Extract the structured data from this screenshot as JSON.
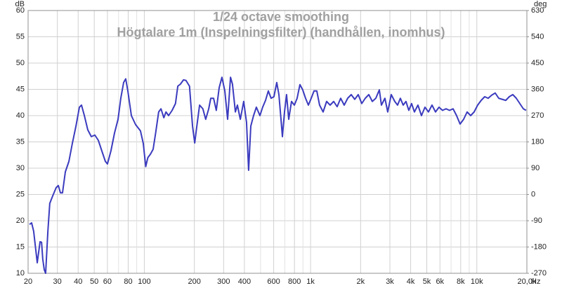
{
  "chart_data": {
    "type": "line",
    "title": "1/24 octave smoothing",
    "subtitle": "Högtalare 1m (Inspelningsfilter) (handhållen, inomhus)",
    "ylabel": "dB",
    "y2label": "deg",
    "xlabel": "Hz",
    "log_x": true,
    "grid": true,
    "xlim": [
      20,
      20000
    ],
    "xticks": [
      20,
      30,
      40,
      50,
      60,
      80,
      100,
      200,
      300,
      400,
      600,
      800,
      {
        "value": 1000,
        "label": "1k"
      },
      {
        "value": 2000,
        "label": "2k"
      },
      {
        "value": 3000,
        "label": "3k"
      },
      {
        "value": 4000,
        "label": "4k"
      },
      {
        "value": 5000,
        "label": "5k"
      },
      {
        "value": 6000,
        "label": "6k"
      },
      {
        "value": 8000,
        "label": "8k"
      },
      {
        "value": 10000,
        "label": "10k"
      },
      {
        "value": 20000,
        "label": "20,0k"
      }
    ],
    "xminorticks": [
      70,
      90,
      500,
      700,
      900,
      7000,
      9000
    ],
    "ylim": [
      10,
      60
    ],
    "yticks": [
      10,
      15,
      20,
      25,
      30,
      35,
      40,
      45,
      50,
      55,
      60
    ],
    "y2lim": [
      -270,
      630
    ],
    "y2ticks": [
      -270,
      -180,
      -90,
      0,
      90,
      180,
      270,
      360,
      450,
      540,
      630
    ],
    "x": [
      20.4,
      21.0,
      21.6,
      22.7,
      23.6,
      24.1,
      24.5,
      25.0,
      25.5,
      26.3,
      27.0,
      28.1,
      29.5,
      30.4,
      31.3,
      32.2,
      33.5,
      35.2,
      36.9,
      38.8,
      40.7,
      41.9,
      43.6,
      45.7,
      48.0,
      50.4,
      52.9,
      55.5,
      58.3,
      60.0,
      63.0,
      66.2,
      69.5,
      72.2,
      75.1,
      77.3,
      79.6,
      83.6,
      88.6,
      94.8,
      98.6,
      102,
      105,
      109,
      113,
      117,
      122,
      126,
      131,
      135,
      140,
      147,
      154,
      159,
      165,
      172,
      178,
      187,
      195,
      201,
      207,
      215,
      225,
      234,
      244,
      251,
      261,
      271,
      282,
      293,
      305,
      317,
      330,
      339,
      353,
      363,
      378,
      396,
      412,
      424,
      437,
      454,
      472,
      496,
      515,
      536,
      557,
      579,
      602,
      626,
      645,
      664,
      677,
      697,
      717,
      739,
      768,
      799,
      830,
      863,
      897,
      933,
      970,
      1009,
      1049,
      1090,
      1133,
      1190,
      1249,
      1311,
      1377,
      1445,
      1517,
      1593,
      1672,
      1756,
      1843,
      1935,
      2032,
      2133,
      2240,
      2352,
      2468,
      2592,
      2668,
      2800,
      2911,
      3057,
      3209,
      3337,
      3468,
      3606,
      3749,
      3897,
      4052,
      4214,
      4424,
      4645,
      4877,
      5118,
      5375,
      5643,
      5923,
      6218,
      6530,
      6855,
      7196,
      7555,
      7931,
      8328,
      8742,
      9177,
      9635,
      10117,
      10620,
      11149,
      11704,
      12287,
      12902,
      13544,
      14219,
      14929,
      15672,
      16455,
      17276,
      18135,
      19039,
      19784
    ],
    "series": [
      {
        "color": "#3b3bbf",
        "values": [
          19.3,
          19.6,
          18,
          12,
          16,
          15.9,
          12.7,
          10.7,
          10,
          18,
          23.3,
          24.7,
          26.3,
          26.7,
          25.3,
          25.3,
          29.3,
          31.3,
          34.7,
          38,
          41.6,
          42,
          40,
          37.3,
          36,
          36.3,
          35.3,
          33.3,
          31.3,
          30.8,
          33.3,
          36.7,
          39.3,
          43.3,
          46.3,
          47,
          44.7,
          40,
          38.3,
          37.1,
          34.7,
          30.3,
          32,
          32.7,
          33.6,
          36.7,
          40.7,
          41.3,
          39.6,
          40.7,
          40,
          41,
          42.3,
          45.6,
          46,
          46.8,
          46.7,
          45.6,
          38,
          34.8,
          38,
          42,
          41.3,
          39.3,
          41.3,
          43.3,
          43.3,
          41,
          45.3,
          47.3,
          44.7,
          39.3,
          47.3,
          46,
          40.7,
          42,
          39.3,
          42.7,
          38.7,
          29.6,
          38,
          40,
          41.6,
          40,
          41.6,
          42.9,
          44.7,
          43.3,
          43.6,
          46.3,
          44,
          39.3,
          36,
          40.7,
          44,
          39.3,
          42.7,
          42,
          43.3,
          45.9,
          44.9,
          43.3,
          42,
          43.3,
          44.7,
          44.7,
          42,
          40.7,
          42.7,
          42,
          42.7,
          41.7,
          43.3,
          42,
          43.3,
          44,
          43.1,
          44,
          42.3,
          43.3,
          44,
          42.7,
          43.3,
          44.9,
          42,
          43.3,
          40.7,
          44,
          42.7,
          42,
          43.3,
          42,
          42.7,
          41,
          42.3,
          40.7,
          42,
          40,
          41.6,
          40.7,
          42,
          40.7,
          41.6,
          41,
          41.3,
          41,
          41.3,
          40,
          38.4,
          39.3,
          40.7,
          40,
          40.7,
          42,
          42.9,
          43.6,
          43.3,
          43.9,
          44.3,
          43.3,
          43.1,
          42.9,
          43.6,
          44,
          43.3,
          42.3,
          41.3,
          41
        ]
      }
    ]
  }
}
